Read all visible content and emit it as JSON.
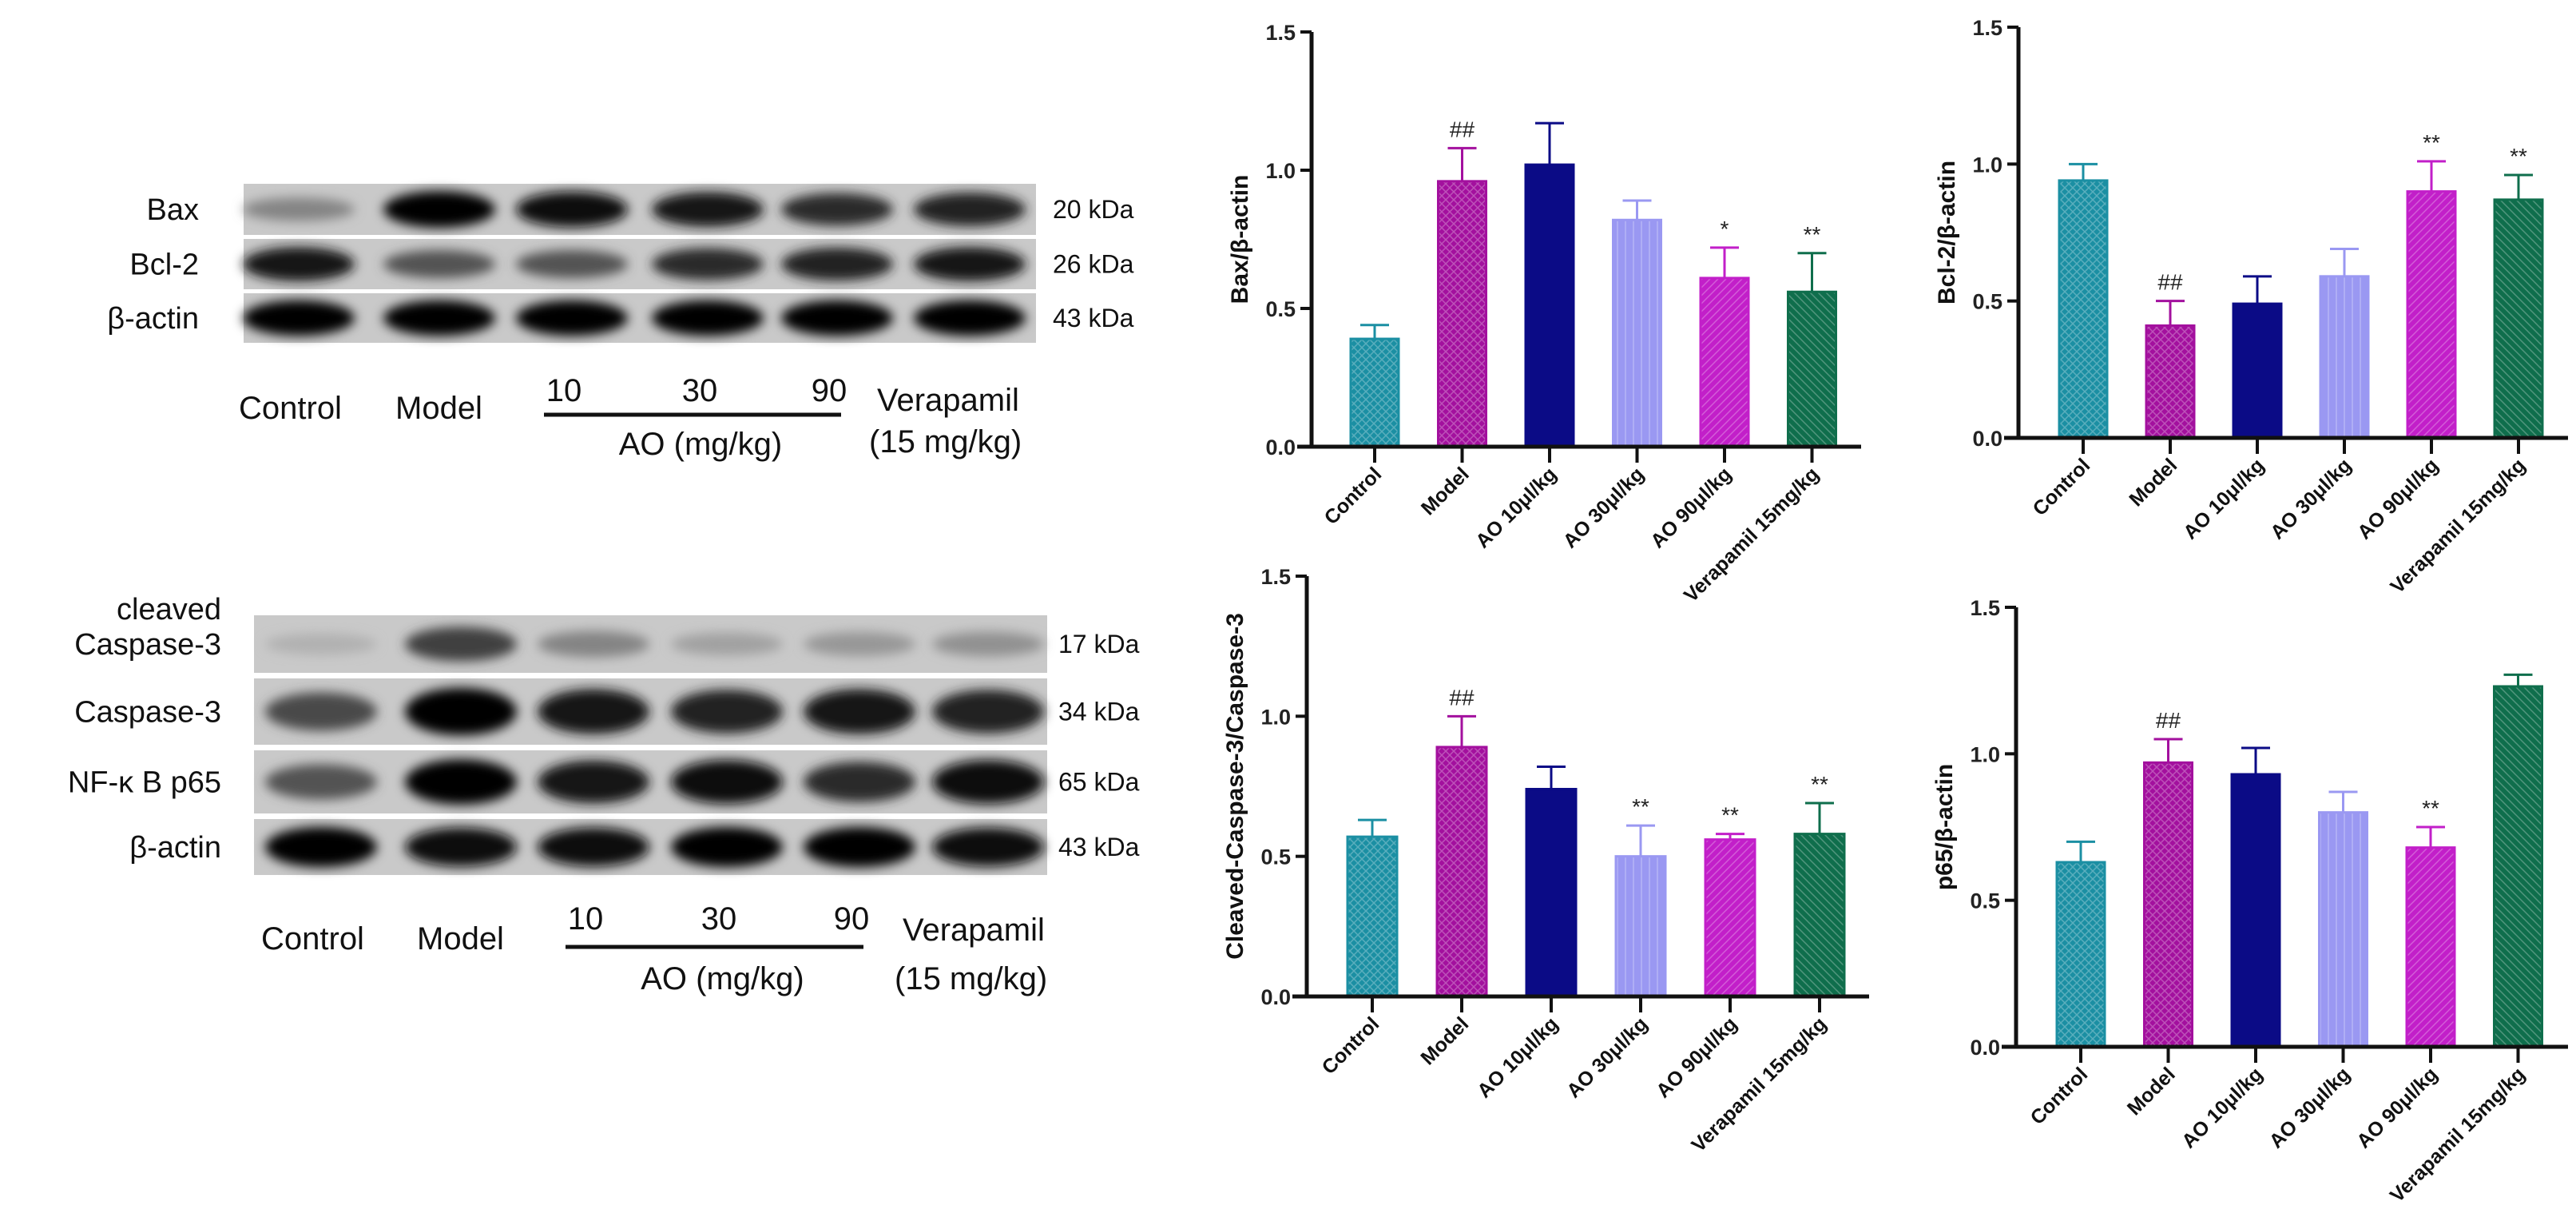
{
  "blots": [
    {
      "rows": [
        {
          "label": [
            "Bax"
          ],
          "kda": "20 kDa"
        },
        {
          "label": [
            "Bcl-2"
          ],
          "kda": "26 kDa"
        },
        {
          "label": [
            "β-actin"
          ],
          "kda": "43 kDa"
        }
      ],
      "lanes": {
        "control": "Control",
        "model": "Model",
        "doses": [
          "10",
          "30",
          "90"
        ],
        "ao": "AO (mg/kg)",
        "verapamil": "Verapamil",
        "verapamil_dose": "(15 mg/kg)"
      }
    },
    {
      "rows": [
        {
          "label": [
            "cleaved",
            "Caspase-3"
          ],
          "kda": "17 kDa"
        },
        {
          "label": [
            "Caspase-3"
          ],
          "kda": "34 kDa"
        },
        {
          "label": [
            "NF-κ B p65"
          ],
          "kda": "65 kDa"
        },
        {
          "label": [
            "β-actin"
          ],
          "kda": "43 kDa"
        }
      ],
      "lanes": {
        "control": "Control",
        "model": "Model",
        "doses": [
          "10",
          "30",
          "90"
        ],
        "ao": "AO (mg/kg)",
        "verapamil": "Verapamil",
        "verapamil_dose": "(15 mg/kg)"
      }
    }
  ],
  "colors": {
    "Control": "#1b8fa3",
    "Model": "#a3109e",
    "AO 10μl/kg": "#0b0b86",
    "AO 30μl/kg": "#9a98f2",
    "AO 90μl/kg": "#c21fc9",
    "Verapamil 15mg/kg": "#0f6e4c"
  },
  "patterns": [
    "fine-crosshatch",
    "crosshatch",
    "solid",
    "vertical-lines",
    "diagonal",
    "reverse-diagonal"
  ],
  "chart_data": [
    {
      "type": "bar",
      "ylabel": "Bax/β-actin",
      "ylim": [
        0,
        1.5
      ],
      "yticks": [
        "0.0",
        "0.5",
        "1.0",
        "1.5"
      ],
      "categories": [
        "Control",
        "Model",
        "AO 10μl/kg",
        "AO 30μl/kg",
        "AO 90μl/kg",
        "Verapamil 15mg/kg"
      ],
      "values": [
        0.39,
        0.96,
        1.02,
        0.82,
        0.61,
        0.56
      ],
      "error": [
        0.05,
        0.12,
        0.15,
        0.07,
        0.11,
        0.14
      ],
      "annotations": [
        "",
        "##",
        "",
        "",
        "*",
        "**"
      ]
    },
    {
      "type": "bar",
      "ylabel": "Bcl-2/β-actin",
      "ylim": [
        0,
        1.5
      ],
      "yticks": [
        "0.0",
        "0.5",
        "1.0",
        "1.5"
      ],
      "categories": [
        "Control",
        "Model",
        "AO 10μl/kg",
        "AO 30μl/kg",
        "AO 90μl/kg",
        "Verapamil 15mg/kg"
      ],
      "values": [
        0.94,
        0.41,
        0.49,
        0.59,
        0.9,
        0.87
      ],
      "error": [
        0.06,
        0.09,
        0.1,
        0.1,
        0.11,
        0.09
      ],
      "annotations": [
        "",
        "##",
        "",
        "",
        "**",
        "**"
      ]
    },
    {
      "type": "bar",
      "ylabel": "Cleaved-Caspase-3/Caspase-3",
      "ylim": [
        0,
        1.5
      ],
      "yticks": [
        "0.0",
        "0.5",
        "1.0",
        "1.5"
      ],
      "categories": [
        "Control",
        "Model",
        "AO 10μl/kg",
        "AO 30μl/kg",
        "AO 90μl/kg",
        "Verapamil 15mg/kg"
      ],
      "values": [
        0.57,
        0.89,
        0.74,
        0.5,
        0.56,
        0.58
      ],
      "error": [
        0.06,
        0.11,
        0.08,
        0.11,
        0.02,
        0.11
      ],
      "annotations": [
        "",
        "##",
        "",
        "**",
        "**",
        "**"
      ]
    },
    {
      "type": "bar",
      "ylabel": "p65/β-actin",
      "ylim": [
        0,
        1.5
      ],
      "yticks": [
        "0.0",
        "0.5",
        "1.0",
        "1.5"
      ],
      "categories": [
        "Control",
        "Model",
        "AO 10μl/kg",
        "AO 30μl/kg",
        "AO 90μl/kg",
        "Verapamil 15mg/kg"
      ],
      "values": [
        0.63,
        0.97,
        0.93,
        0.8,
        0.68,
        1.23
      ],
      "error": [
        0.07,
        0.08,
        0.09,
        0.07,
        0.07,
        0.04
      ],
      "annotations": [
        "",
        "##",
        "",
        "",
        "**",
        ""
      ]
    }
  ]
}
